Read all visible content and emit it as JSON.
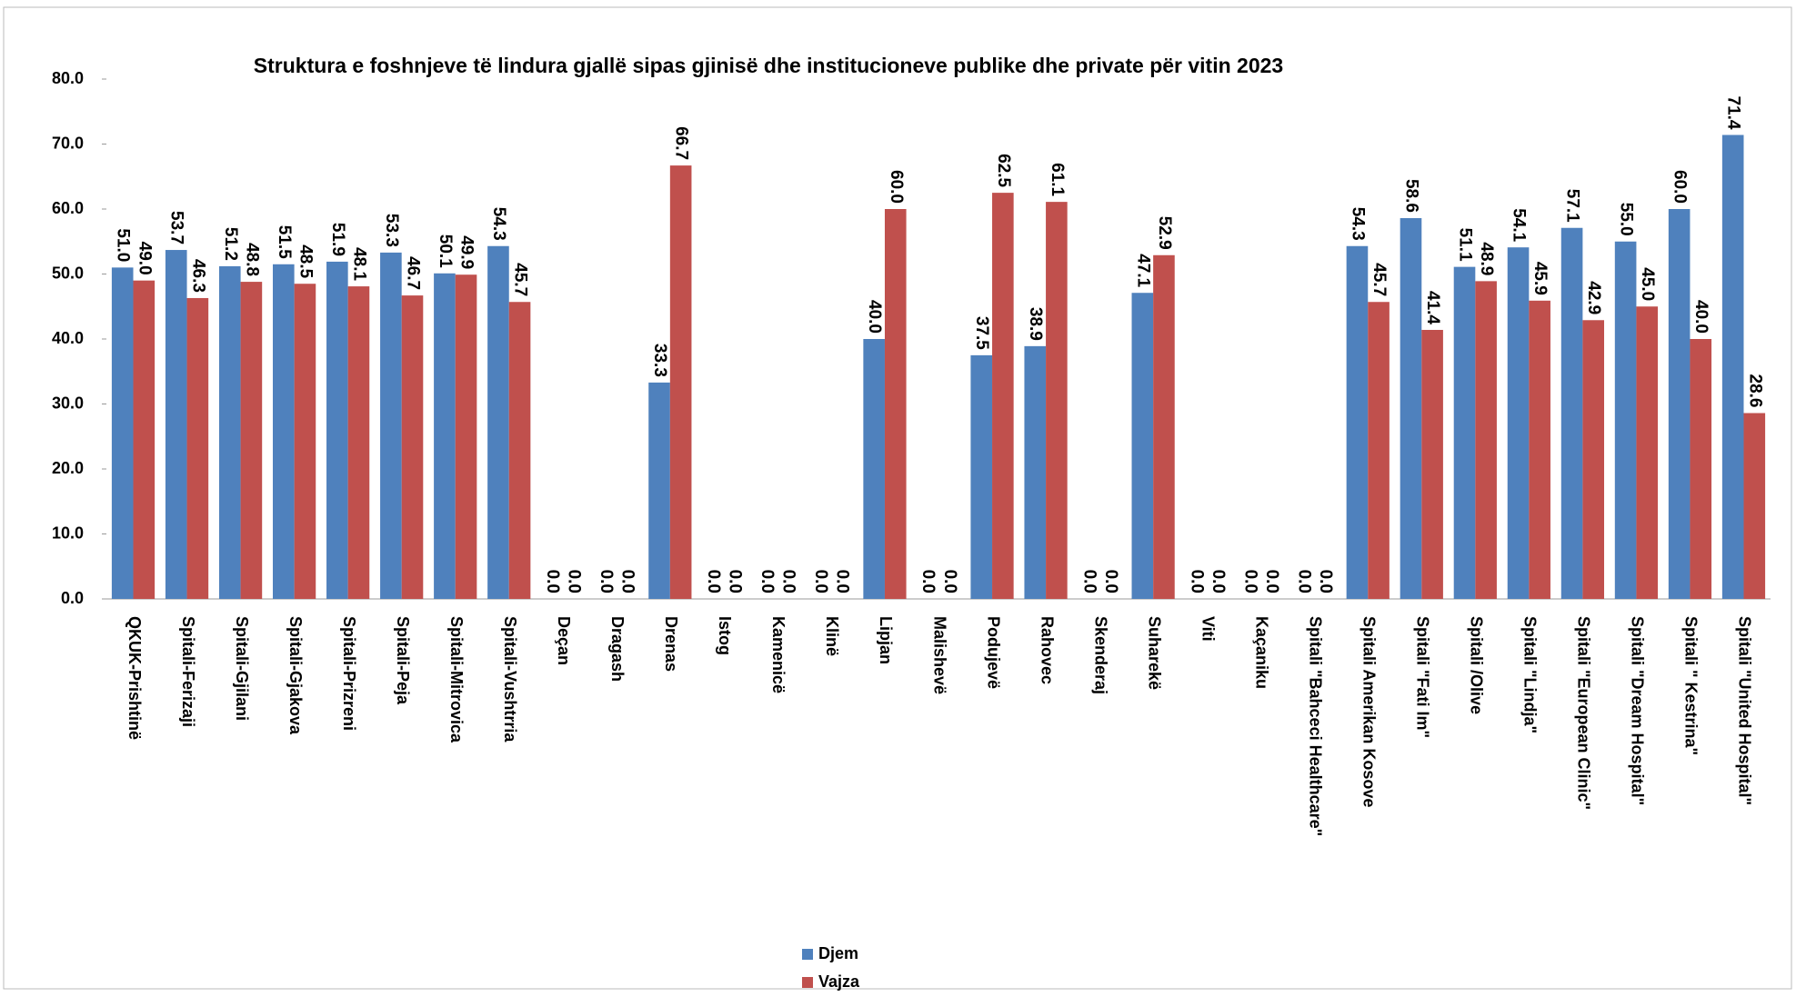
{
  "chart_data": {
    "type": "bar",
    "title": "Struktura e foshnjeve të lindura gjallë sipas gjinisë dhe institucioneve publike dhe private për vitin 2023",
    "categories": [
      "QKUK-Prishtinë",
      "Spitali-Ferizaji",
      "Spitali-Gjilani",
      "Spitali-Gjakova",
      "Spitali-Prizreni",
      "Spitali-Peja",
      "Spitali-Mitrovica",
      "Spitali-Vushtrria",
      "Deçan",
      "Dragash",
      "Drenas",
      "Istog",
      "Kamenicë",
      "Klinë",
      "Lipjan",
      "Malishevë",
      "Podujevë",
      "Rahovec",
      "Skenderaj",
      "Suharekë",
      "Viti",
      "Kaçaniku",
      "Spitali \"Bahceci Healthcare\"",
      "Spitali Amerikan Kosove",
      "Spitali \"Fati Im\"",
      "Spitali /Olive",
      "Spitali \"Lindja\"",
      "Spitali \"European Clinic\"",
      "Spitali \"Dream Hospital\"",
      "Spitali \" Kestrina\"",
      "Spitali \"United Hospital\""
    ],
    "series": [
      {
        "name": "Djem",
        "color": "#4f81bd",
        "values": [
          51.0,
          53.7,
          51.2,
          51.5,
          51.9,
          53.3,
          50.1,
          54.3,
          0,
          0,
          33.3,
          0,
          0,
          0,
          40.0,
          0,
          37.5,
          38.9,
          0,
          47.1,
          0,
          0,
          0,
          54.3,
          58.6,
          51.1,
          54.1,
          57.1,
          55.0,
          60.0,
          71.4
        ],
        "value_labels": [
          "51.0",
          "53.7",
          "51.2",
          "51.5",
          "51.9",
          "53.3",
          "50.1",
          "54.3",
          "0.0",
          "0.0",
          "33.3",
          "0.0",
          "0.0",
          "0.0",
          "40.0",
          "0.0",
          "37.5",
          "38.9",
          "0.0",
          "47.1",
          "0.0",
          "0.0",
          "0.0",
          "54.3",
          "58.6",
          "51.1",
          "54.1",
          "57.1",
          "55.0",
          "60.0",
          "71.4"
        ]
      },
      {
        "name": "Vajza",
        "color": "#c0504d",
        "values": [
          49.0,
          46.3,
          48.8,
          48.5,
          48.1,
          46.7,
          49.9,
          45.7,
          0,
          0,
          66.7,
          0,
          0,
          0,
          60.0,
          0,
          62.5,
          61.1,
          0,
          52.9,
          0,
          0,
          0,
          45.7,
          41.4,
          48.9,
          45.9,
          42.9,
          45.0,
          40.0,
          28.6
        ],
        "value_labels": [
          "49.0",
          "46.3",
          "48.8",
          "48.5",
          "48.1",
          "46.7",
          "49.9",
          "45.7",
          "0.0",
          "0.0",
          "66.7",
          "0.0",
          "0.0",
          "0.0",
          "60.0",
          "0.0",
          "62.5",
          "61.1",
          "0.0",
          "52.9",
          "0.0",
          "0.0",
          "0.0",
          "45.7",
          "41.4",
          "48.9",
          "45.9",
          "42.9",
          "45.0",
          "40.0",
          "28.6"
        ]
      }
    ],
    "ylim": [
      0,
      80
    ],
    "yticks": [
      {
        "value": 0,
        "label": "0.0"
      },
      {
        "value": 10,
        "label": "10.0"
      },
      {
        "value": 20,
        "label": "20.0"
      },
      {
        "value": 30,
        "label": "30.0"
      },
      {
        "value": 40,
        "label": "40.0"
      },
      {
        "value": 50,
        "label": "50.0"
      },
      {
        "value": 60,
        "label": "60.0"
      },
      {
        "value": 70,
        "label": "70.0"
      },
      {
        "value": 80,
        "label": "80.0"
      }
    ],
    "legend": "bottom"
  }
}
